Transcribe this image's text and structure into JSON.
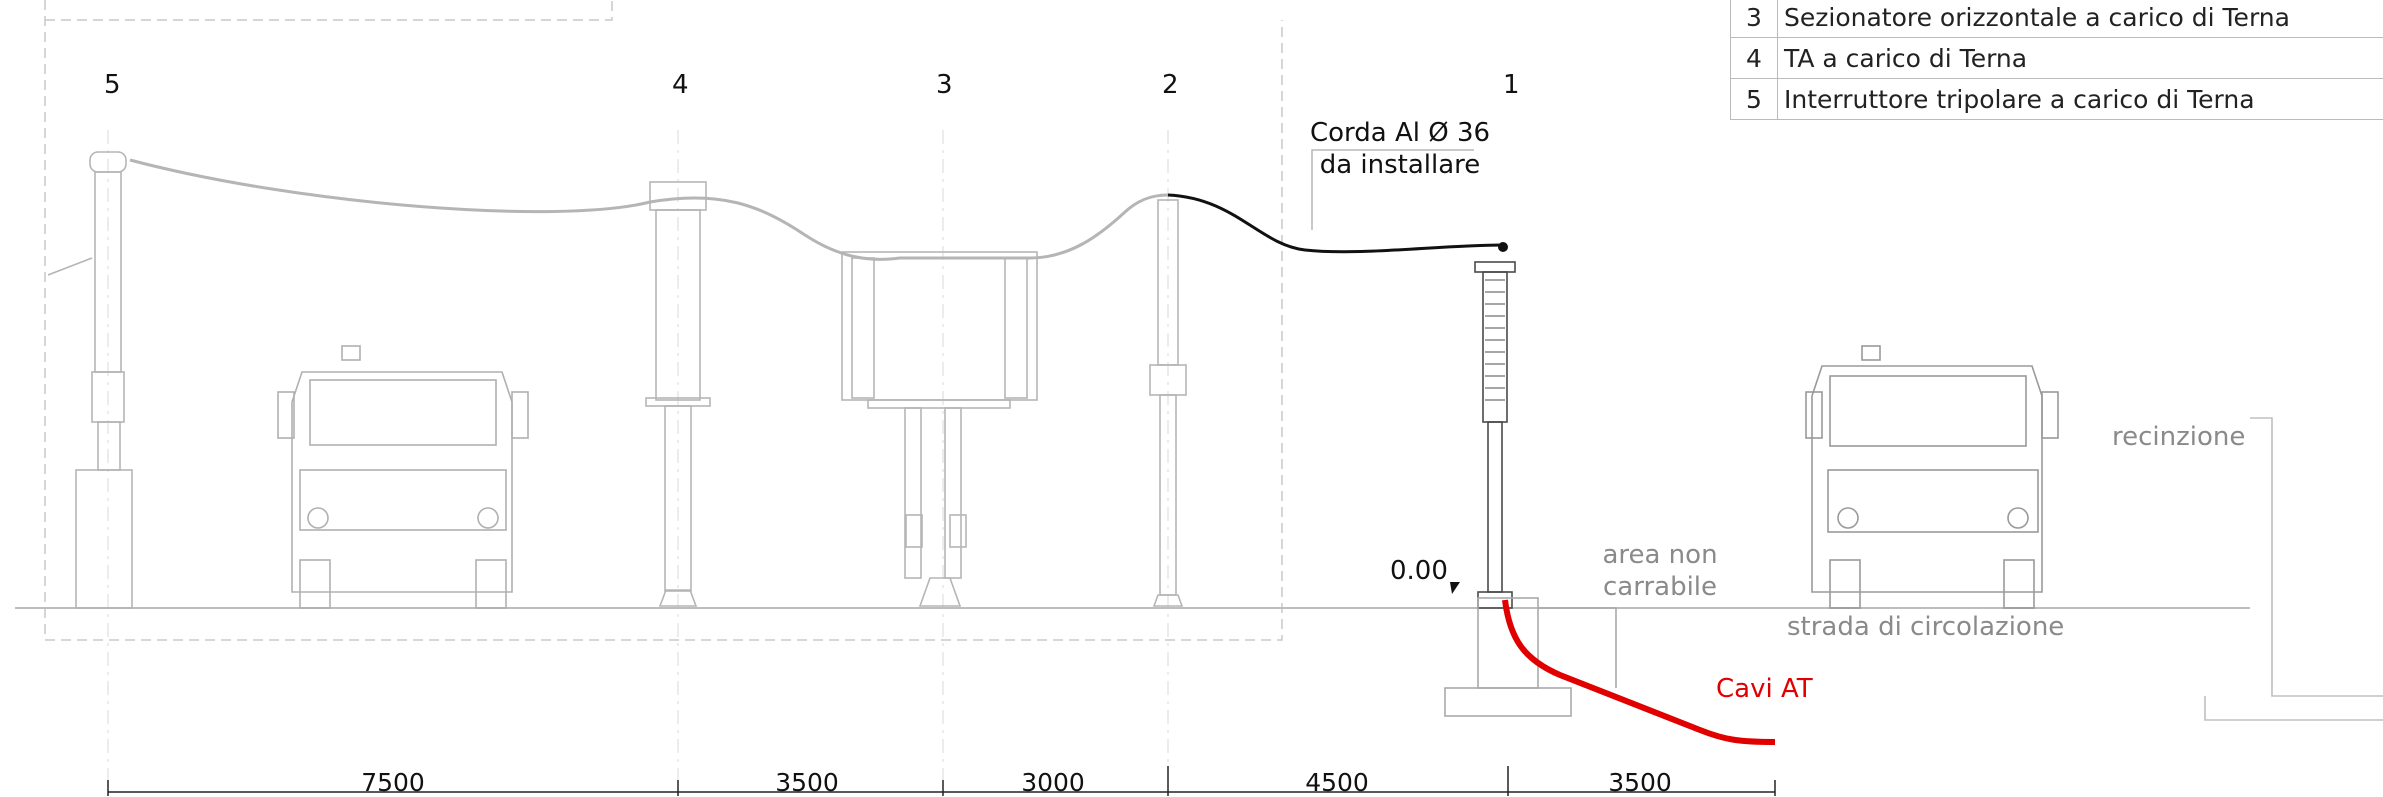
{
  "legend": [
    {
      "n": "3",
      "text": "Sezionatore orizzontale  a carico di Terna"
    },
    {
      "n": "4",
      "text": "TA a carico di Terna"
    },
    {
      "n": "5",
      "text": "Interruttore tripolare  a carico di Terna"
    }
  ],
  "positions": [
    "5",
    "4",
    "3",
    "2",
    "1"
  ],
  "labels": {
    "conductor_line1": "Corda Al Ø 36",
    "conductor_line2": "da installare",
    "level": "0.00",
    "area_line1": "area non",
    "area_line2": "carrabile",
    "fence": "recinzione",
    "road": "strada di circolazione",
    "cables": "Cavi AT"
  },
  "dimensions": [
    "7500",
    "3500",
    "3000",
    "4500",
    "3500"
  ],
  "colors": {
    "cable": "#e00000",
    "conductor": "#111111",
    "existing": "#b5b5b5",
    "text_grey": "#8a8a8a"
  }
}
